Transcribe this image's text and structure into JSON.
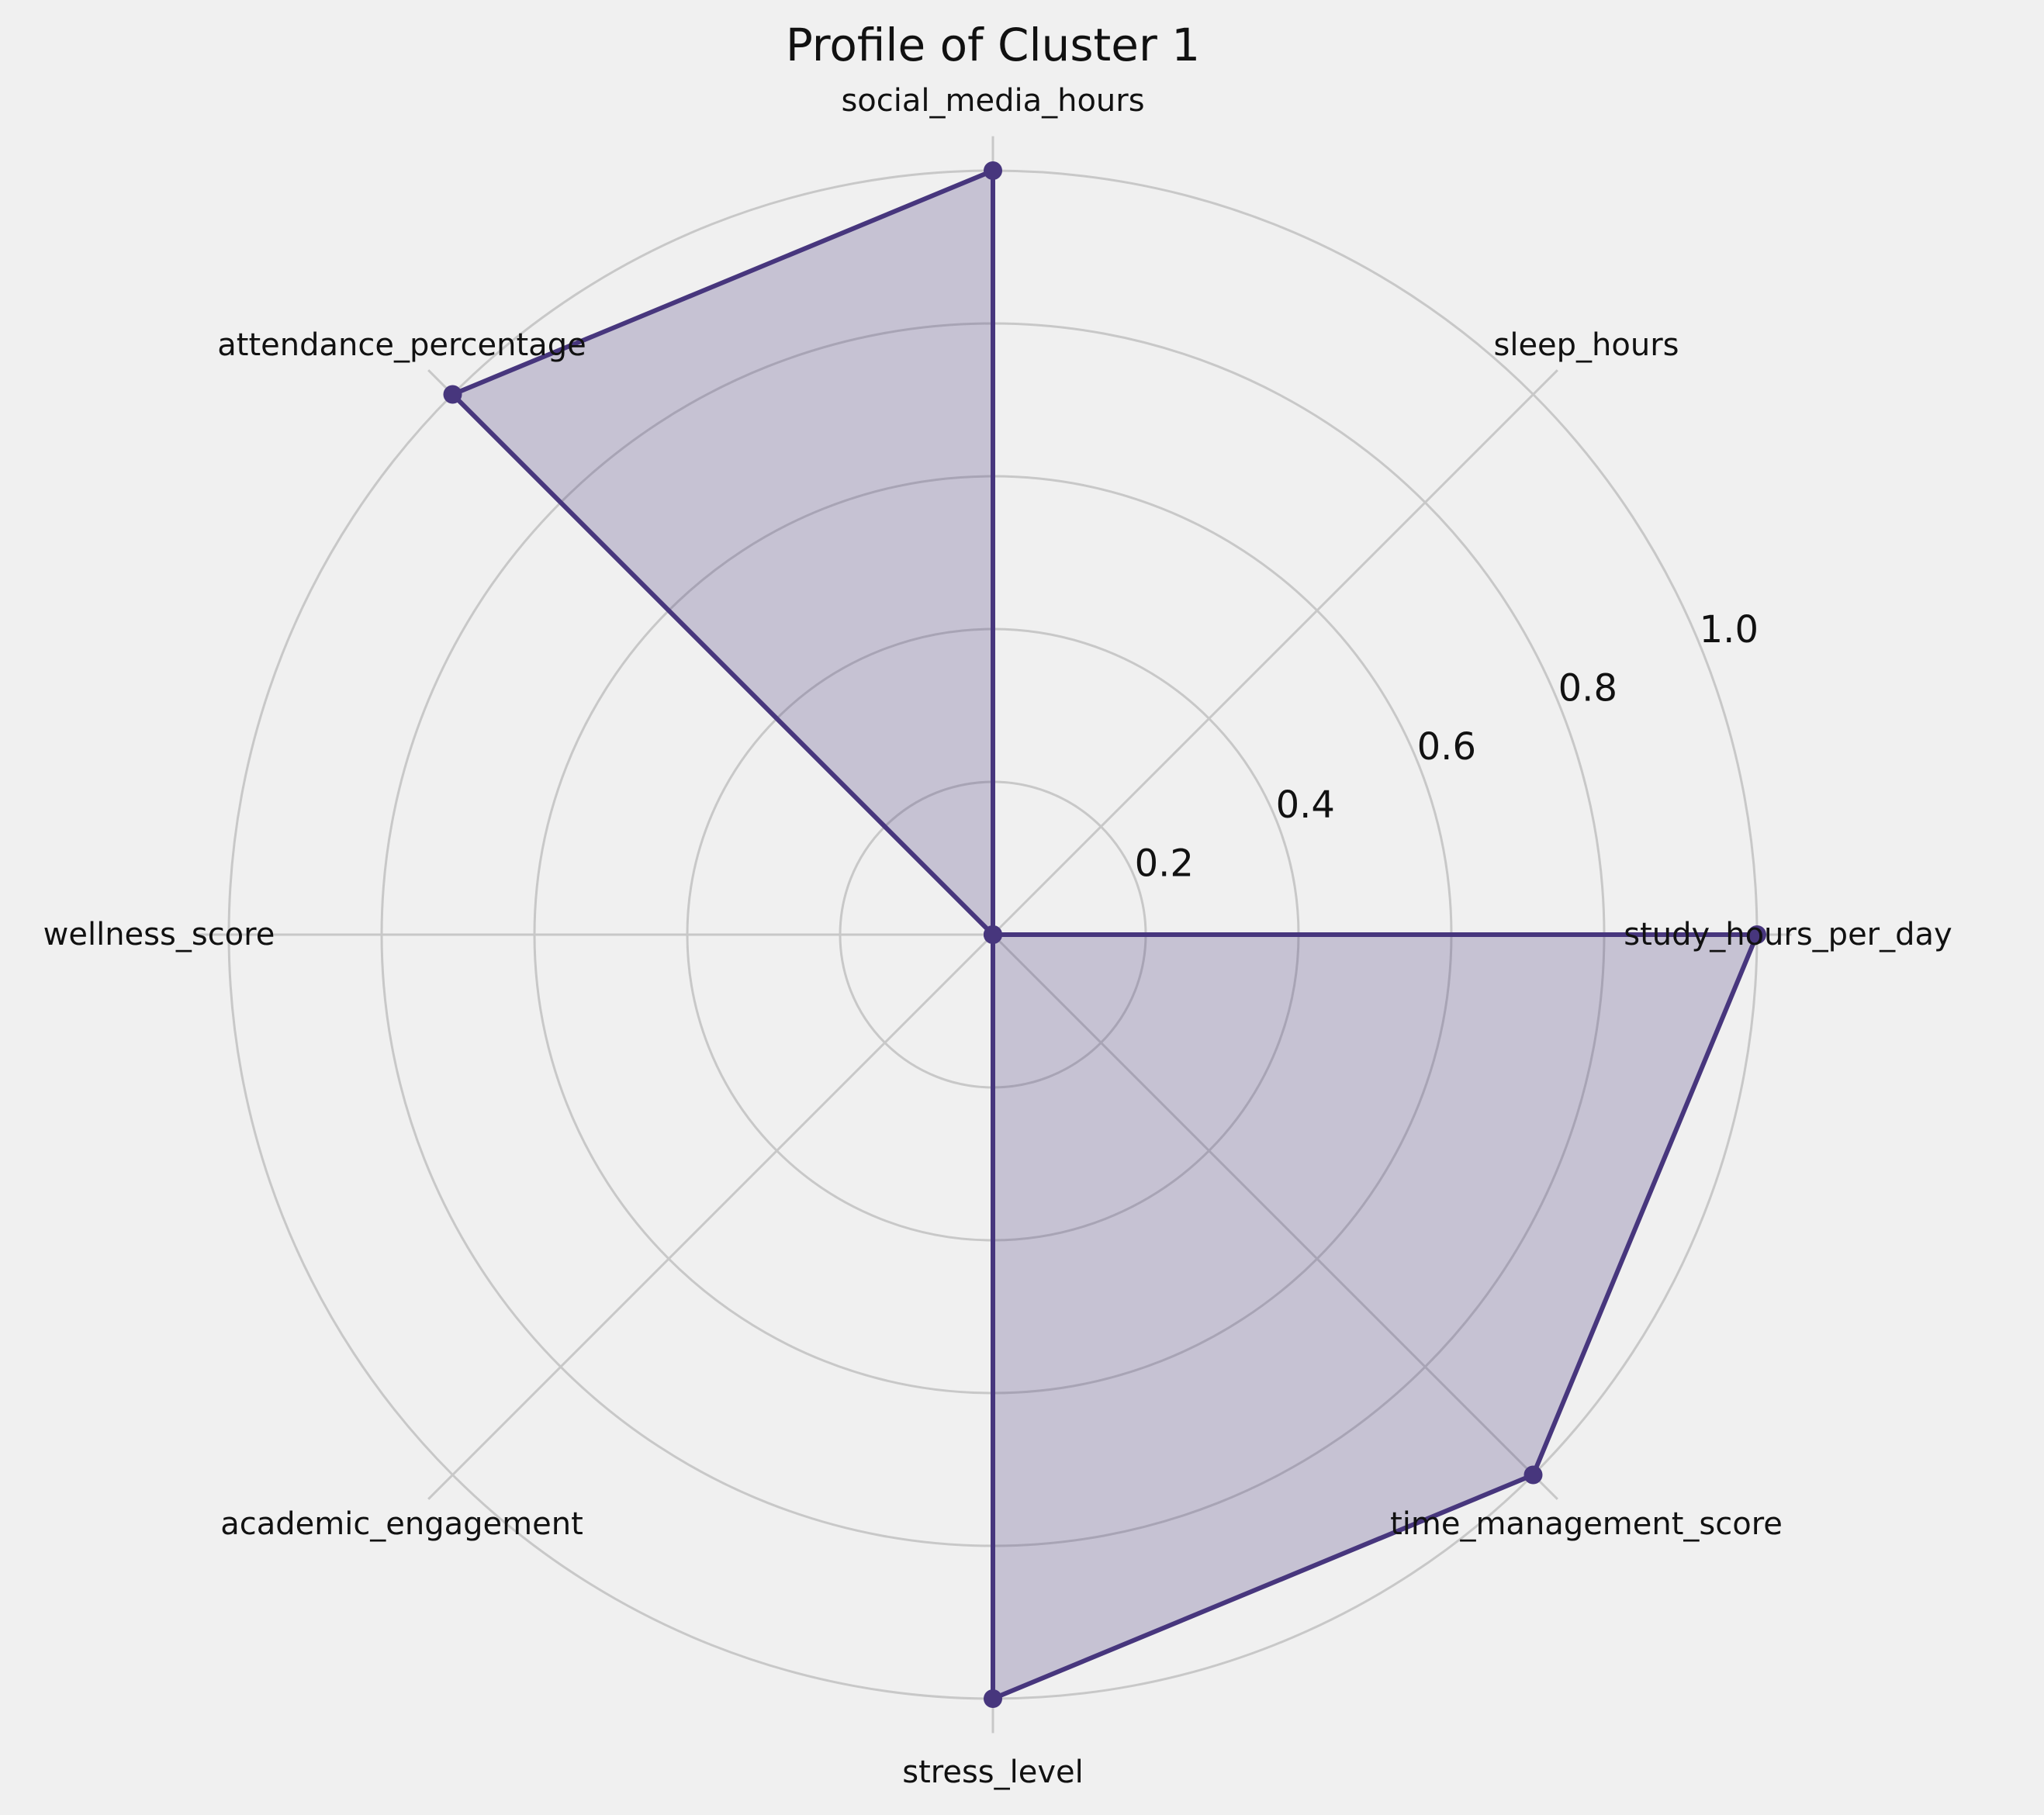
{
  "chart_data": {
    "type": "radar",
    "title": "Profile of Cluster 1",
    "axes": [
      "study_hours_per_day",
      "sleep_hours",
      "social_media_hours",
      "attendance_percentage",
      "wellness_score",
      "academic_engagement",
      "stress_level",
      "time_management_score"
    ],
    "values": [
      1.0,
      0.0,
      1.0,
      1.0,
      0.0,
      0.0,
      1.0,
      1.0
    ],
    "rlim": [
      0,
      1.0
    ],
    "r_ticks": [
      "0.2",
      "0.4",
      "0.6",
      "0.8",
      "1.0"
    ],
    "r_tick_values": [
      0.2,
      0.4,
      0.6,
      0.8,
      1.0
    ],
    "grid": true,
    "colors": {
      "line": "#47367d",
      "fill": "#47367d",
      "grid": "#c8c8c8",
      "background": "#f0f0f0"
    }
  }
}
